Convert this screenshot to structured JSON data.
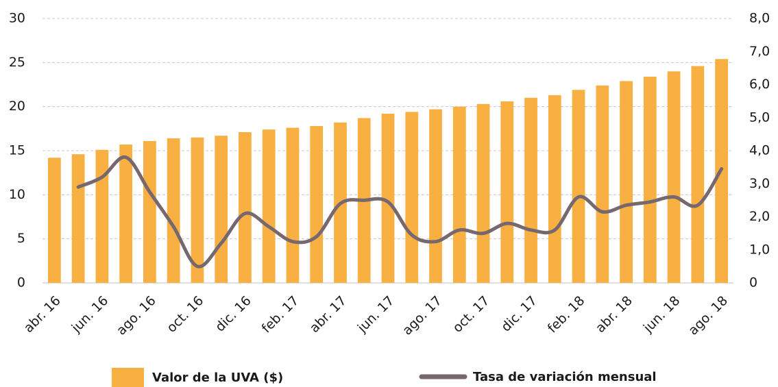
{
  "chart_data": {
    "type": "bar",
    "categories": [
      "abr. 16",
      null,
      "jun. 16",
      null,
      "ago. 16",
      null,
      "oct. 16",
      null,
      "dic. 16",
      null,
      "feb. 17",
      null,
      "abr. 17",
      null,
      "jun. 17",
      null,
      "ago. 17",
      null,
      "oct. 17",
      null,
      "dic. 17",
      null,
      "feb. 18",
      null,
      "abr. 18",
      null,
      "jun. 18",
      null,
      "ago. 18"
    ],
    "series": [
      {
        "name": "Valor de la UVA ($)",
        "type": "bar",
        "color": "#f9b042",
        "values": [
          14.2,
          14.6,
          15.1,
          15.7,
          16.1,
          16.4,
          16.5,
          16.7,
          17.1,
          17.4,
          17.6,
          17.8,
          18.2,
          18.7,
          19.2,
          19.4,
          19.7,
          20.0,
          20.3,
          20.6,
          21.0,
          21.3,
          21.9,
          22.4,
          22.9,
          23.4,
          24.0,
          24.6,
          25.4
        ]
      },
      {
        "name": "Tasa de variación mensual",
        "type": "line",
        "axis": "y2",
        "color": "#76686e",
        "values": [
          null,
          2.9,
          3.2,
          3.8,
          2.75,
          1.7,
          0.5,
          1.2,
          2.1,
          1.7,
          1.25,
          1.4,
          2.4,
          2.5,
          2.45,
          1.45,
          1.25,
          1.6,
          1.5,
          1.8,
          1.6,
          1.6,
          2.6,
          2.15,
          2.35,
          2.45,
          2.6,
          2.35,
          3.45
        ]
      }
    ],
    "ylim": [
      0,
      30
    ],
    "yticks": [
      0,
      5,
      10,
      15,
      20,
      25,
      30
    ],
    "y2lim": [
      0,
      8
    ],
    "y2ticks": [
      0,
      {
        "value": 1,
        "label": "1,0"
      },
      {
        "value": 2,
        "label": "2,0"
      },
      {
        "value": 3,
        "label": "3,0"
      },
      {
        "value": 4,
        "label": "4,0"
      },
      {
        "value": 5,
        "label": "5,0"
      },
      {
        "value": 6,
        "label": "6,0"
      },
      {
        "value": 7,
        "label": "7,0"
      },
      {
        "value": 8,
        "label": "8,0"
      }
    ],
    "grid": true
  }
}
